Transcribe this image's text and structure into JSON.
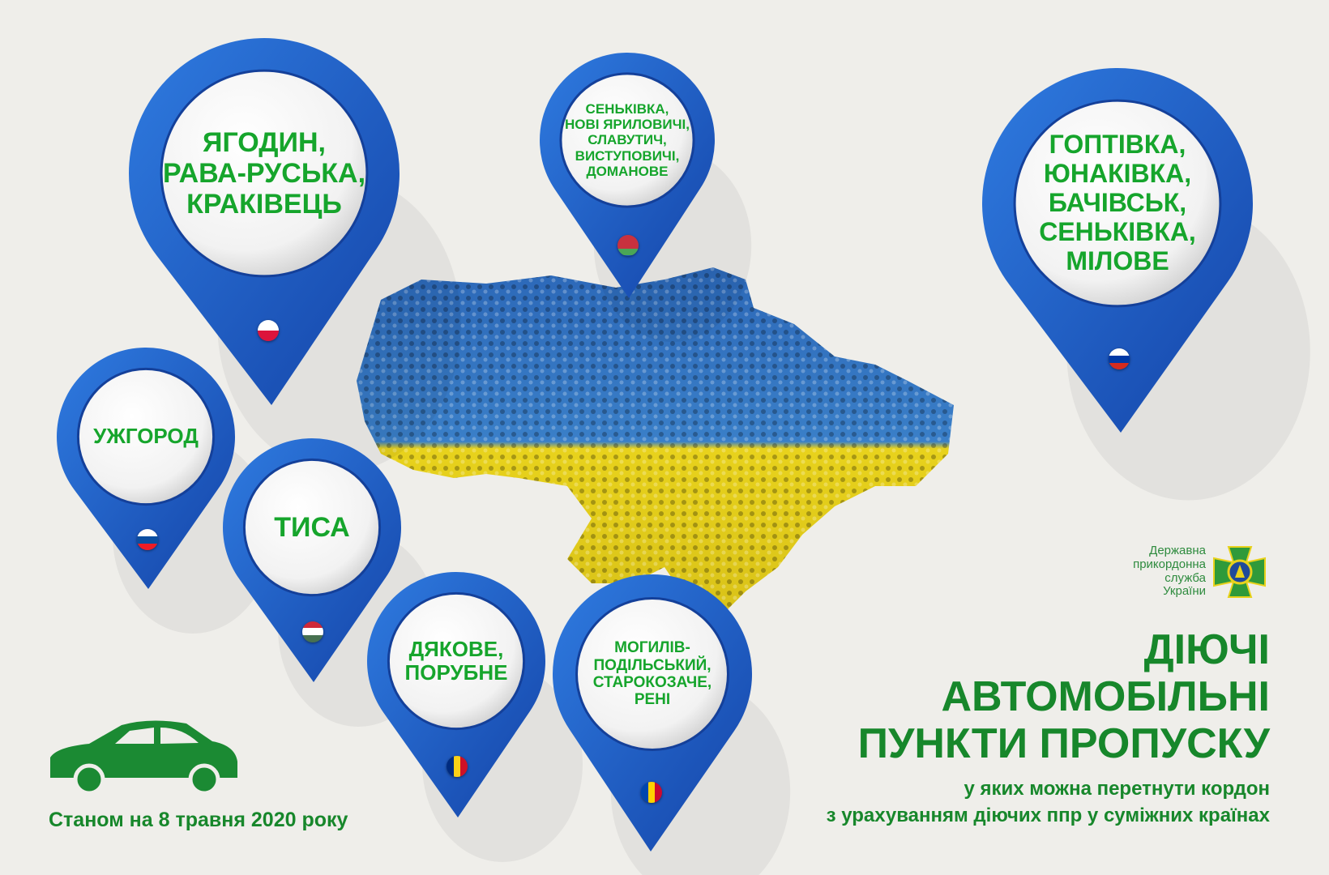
{
  "colors": {
    "pin_blue": "#1f5fc4",
    "text_green": "#16a52c",
    "title_green": "#17872b",
    "map_blue": "#2c68b8",
    "map_yellow": "#e8d21c",
    "background": "#efeeea"
  },
  "pins": [
    {
      "id": "poland",
      "text": "ЯГОДИН,\nРАВА-РУСЬКА,\nКРАКІВЕЦЬ",
      "flag": "poland-flag-icon"
    },
    {
      "id": "belarus",
      "text": "СЕНЬКІВКА,\nНОВІ ЯРИЛОВИЧІ,\nСЛАВУТИЧ,\nВИСТУПОВИЧІ,\nДОМАНОВЕ",
      "flag": "belarus-flag-icon"
    },
    {
      "id": "russia",
      "text": "ГОПТІВКА,\nЮНАКІВКА,\nБАЧІВСЬК,\nСЕНЬКІВКА,\nМІЛОВЕ",
      "flag": "russia-flag-icon"
    },
    {
      "id": "slovakia",
      "text": "УЖГОРОД",
      "flag": "slovakia-flag-icon"
    },
    {
      "id": "hungary",
      "text": "ТИСА",
      "flag": "hungary-flag-icon"
    },
    {
      "id": "romania",
      "text": "ДЯКОВЕ,\nПОРУБНЕ",
      "flag": "romania-flag-icon"
    },
    {
      "id": "moldova",
      "text": "МОГИЛІВ-\nПОДІЛЬСЬКИЙ,\nСТАРОКОЗАЧЕ,\nРЕНІ",
      "flag": "moldova-flag-icon"
    }
  ],
  "logo": {
    "text": "Державна\nприкордонна\nслужба\nУкраїни"
  },
  "title": {
    "line1": "ДІЮЧІ",
    "line2": "АВТОМОБІЛЬНІ",
    "line3": "ПУНКТИ ПРОПУСКУ",
    "sub1": "у яких можна перетнути кордон",
    "sub2": "з урахуванням діючих ппр у суміжних країнах"
  },
  "date": "Станом на 8 травня 2020 року"
}
